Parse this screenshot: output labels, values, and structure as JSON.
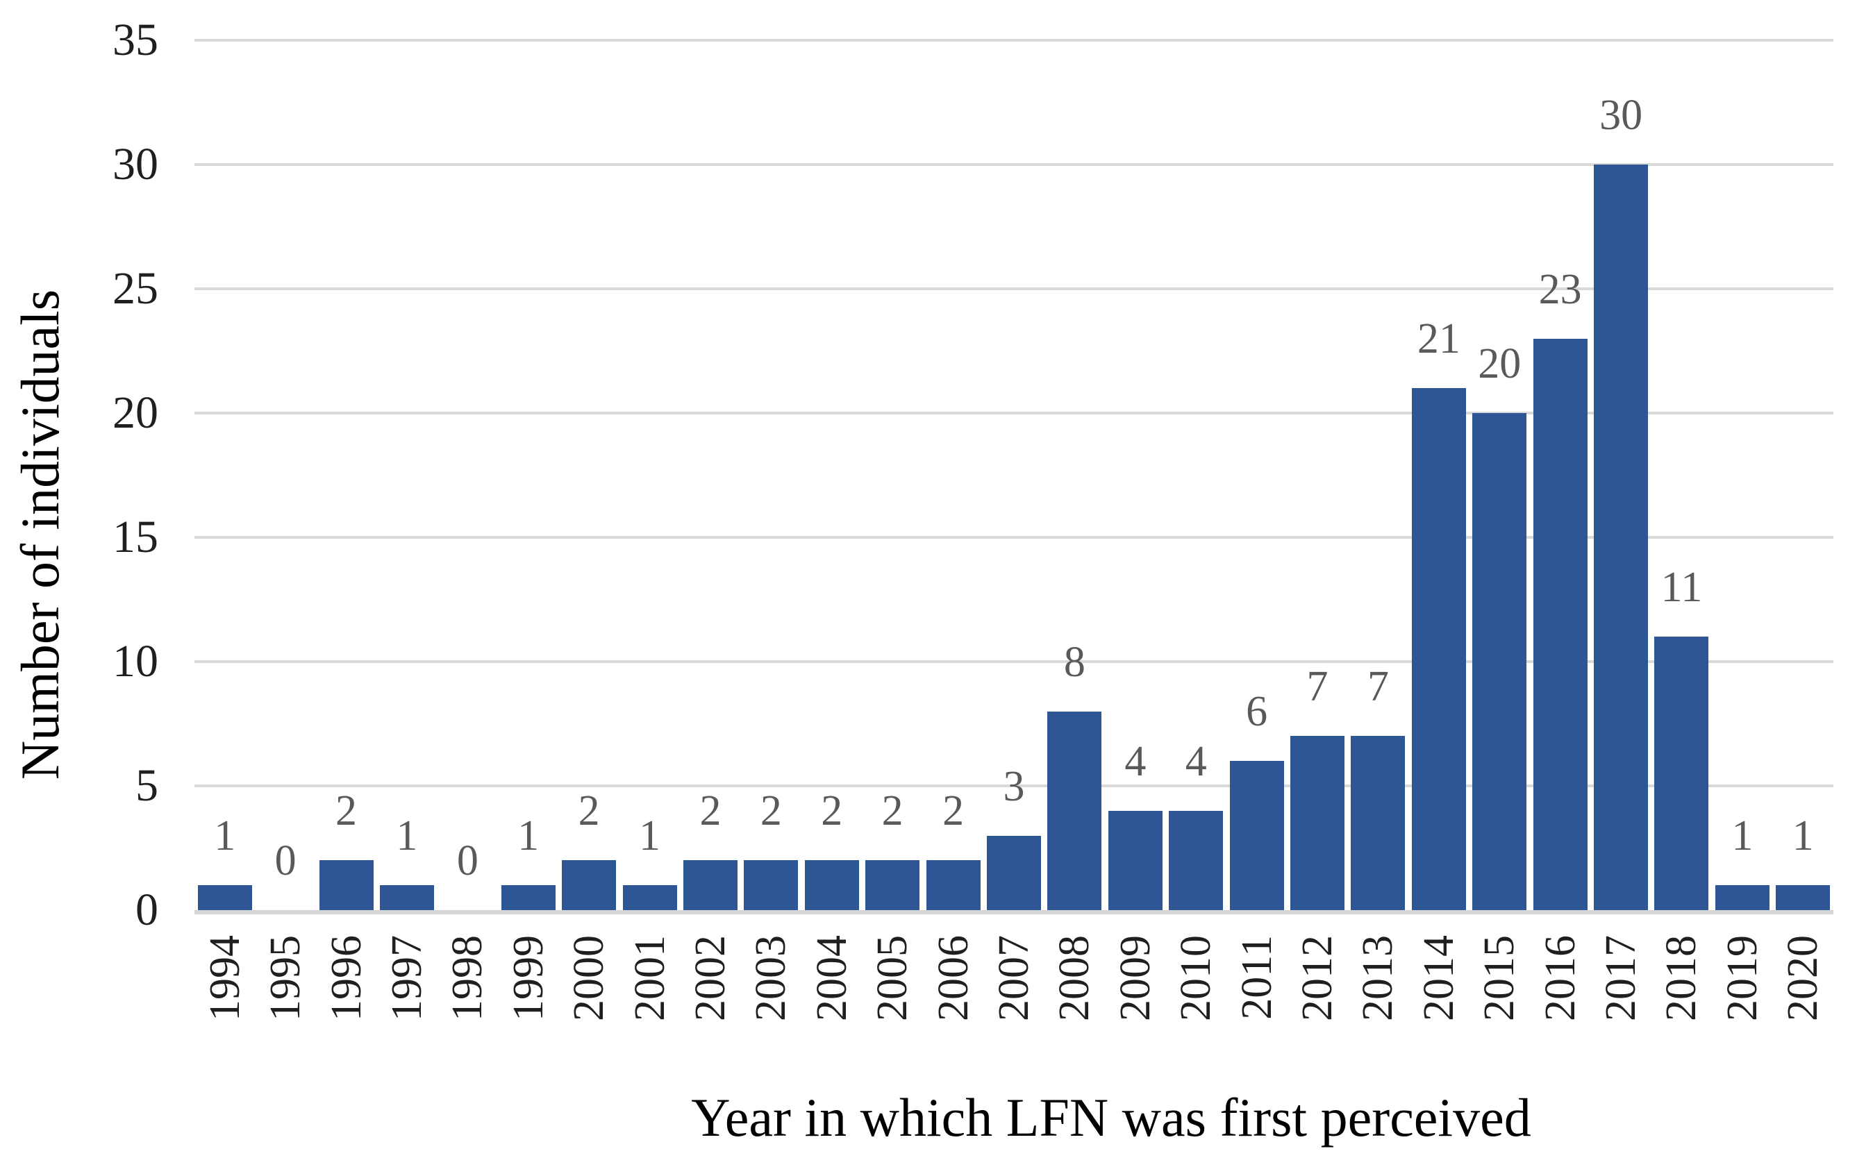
{
  "chart_data": {
    "type": "bar",
    "title": "",
    "xlabel": "Year in which LFN was first perceived",
    "ylabel": "Number of individuals",
    "categories": [
      "1994",
      "1995",
      "1996",
      "1997",
      "1998",
      "1999",
      "2000",
      "2001",
      "2002",
      "2003",
      "2004",
      "2005",
      "2006",
      "2007",
      "2008",
      "2009",
      "2010",
      "2011",
      "2012",
      "2013",
      "2014",
      "2015",
      "2016",
      "2017",
      "2018",
      "2019",
      "2020"
    ],
    "values": [
      1,
      0,
      2,
      1,
      0,
      1,
      2,
      1,
      2,
      2,
      2,
      2,
      2,
      3,
      8,
      4,
      4,
      6,
      7,
      7,
      21,
      20,
      23,
      30,
      11,
      1,
      1
    ],
    "ylim": [
      0,
      35
    ],
    "yticks": [
      0,
      5,
      10,
      15,
      20,
      25,
      30,
      35
    ],
    "grid": true,
    "legend": false,
    "data_labels": true,
    "colors": {
      "bar": "#2E5694",
      "gridline": "#D9D9D9",
      "axis_line": "#D6D6D6",
      "data_label": "#595959",
      "tick_label": "#1F1F1F",
      "axis_title": "#000000",
      "background": "#FFFFFF"
    }
  }
}
